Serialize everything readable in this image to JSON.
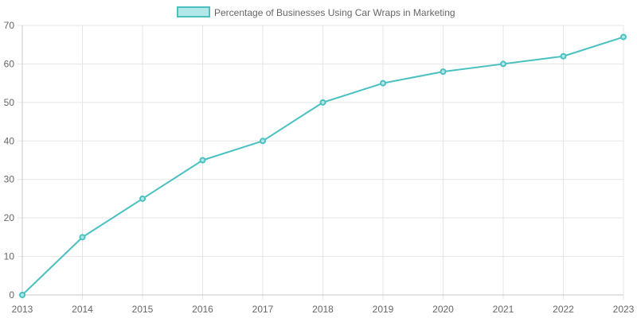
{
  "chart_data": {
    "type": "line",
    "title": "",
    "xlabel": "",
    "ylabel": "",
    "x": [
      "2013",
      "2014",
      "2015",
      "2016",
      "2017",
      "2018",
      "2019",
      "2020",
      "2021",
      "2022",
      "2023"
    ],
    "series": [
      {
        "name": "Percentage of Businesses Using Car Wraps in Marketing",
        "values": [
          0,
          15,
          25,
          35,
          40,
          50,
          55,
          58,
          60,
          62,
          67
        ],
        "color": "#4bc0c0",
        "fill": "#b2e8e8"
      }
    ],
    "ylim": [
      0,
      70
    ],
    "yticks": [
      0,
      10,
      20,
      30,
      40,
      50,
      60,
      70
    ],
    "grid": true,
    "legend": "top-center"
  }
}
